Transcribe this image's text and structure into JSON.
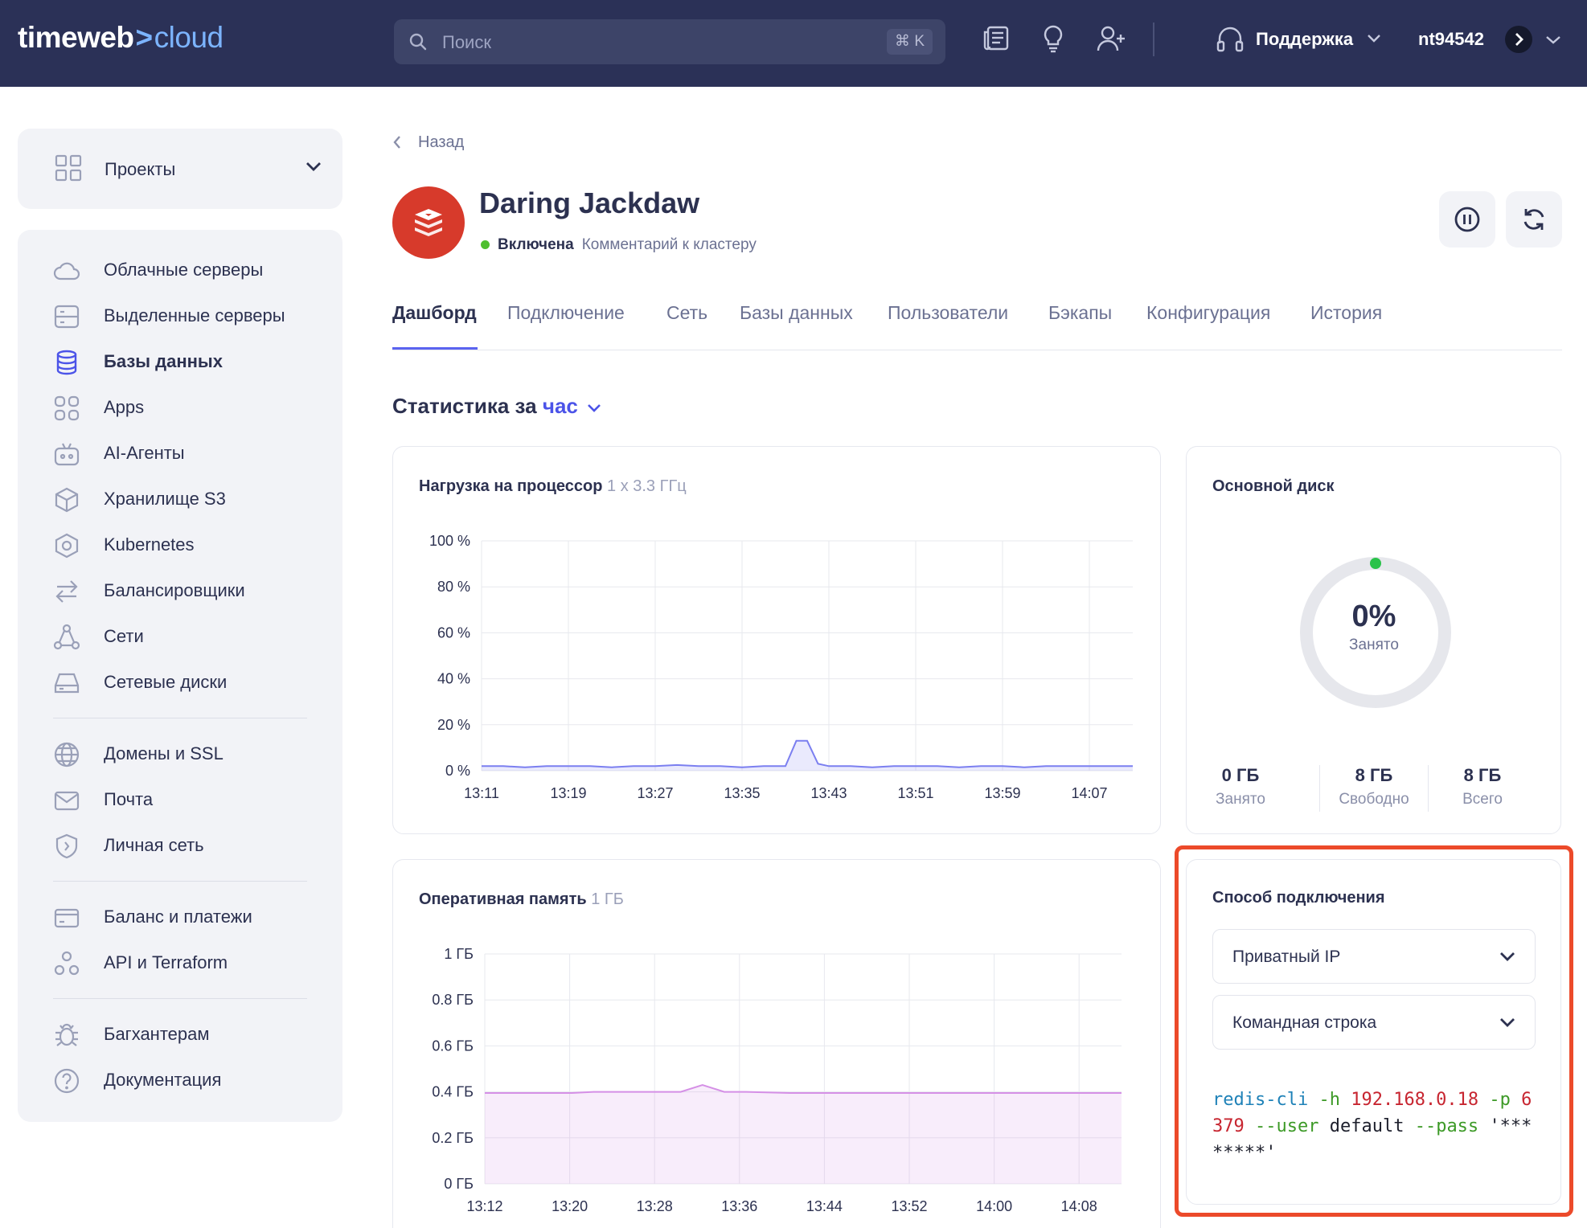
{
  "header": {
    "logo_main": "timeweb",
    "logo_sep": ">",
    "logo_accent": "cloud",
    "search_placeholder": "Поиск",
    "search_shortcut": "⌘ K",
    "support_label": "Поддержка",
    "username": "nt94542",
    "icons": [
      "news-icon",
      "lightbulb-icon",
      "add-user-icon",
      "headset-icon"
    ]
  },
  "sidebar": {
    "projects_label": "Проекты",
    "items": [
      {
        "label": "Облачные серверы",
        "icon": "cloud-icon"
      },
      {
        "label": "Выделенные серверы",
        "icon": "server-icon"
      },
      {
        "label": "Базы данных",
        "icon": "database-icon",
        "active": true
      },
      {
        "label": "Apps",
        "icon": "apps-icon"
      },
      {
        "label": "AI-Агенты",
        "icon": "robot-icon"
      },
      {
        "label": "Хранилище S3",
        "icon": "cube-icon"
      },
      {
        "label": "Kubernetes",
        "icon": "kubernetes-icon"
      },
      {
        "label": "Балансировщики",
        "icon": "arrows-icon"
      },
      {
        "label": "Сети",
        "icon": "network-icon"
      },
      {
        "label": "Сетевые диски",
        "icon": "disk-icon"
      },
      {
        "label": "Домены и SSL",
        "icon": "globe-icon"
      },
      {
        "label": "Почта",
        "icon": "mail-icon"
      },
      {
        "label": "Личная сеть",
        "icon": "shield-icon"
      },
      {
        "label": "Баланс и платежи",
        "icon": "card-icon"
      },
      {
        "label": "API и Terraform",
        "icon": "api-icon"
      },
      {
        "label": "Багхантерам",
        "icon": "bug-icon"
      },
      {
        "label": "Документация",
        "icon": "help-icon"
      }
    ]
  },
  "page": {
    "back_label": "Назад",
    "title": "Daring Jackdaw",
    "status": "Включена",
    "comment": "Комментарий к кластеру",
    "accent_color": "#5b63ef",
    "status_color": "#4fbf2f",
    "tabs": [
      "Дашборд",
      "Подключение",
      "Сеть",
      "Базы данных",
      "Пользователи",
      "Бэкапы",
      "Конфигурация",
      "История"
    ],
    "stats_prefix": "Статистика за",
    "stats_period": "час"
  },
  "cpu_card": {
    "title": "Нагрузка на процессор",
    "subtitle": "1 x 3.3 ГГц"
  },
  "ram_card": {
    "title": "Оперативная память",
    "subtitle": "1 ГБ"
  },
  "chart_data": [
    {
      "type": "area",
      "ylabel": "",
      "xlabel": "",
      "ylim": [
        0,
        100
      ],
      "y_ticks": [
        "100 %",
        "80 %",
        "60 %",
        "40 %",
        "20 %",
        "0 %"
      ],
      "categories": [
        "13:11",
        "13:19",
        "13:27",
        "13:35",
        "13:43",
        "13:51",
        "13:59",
        "14:07"
      ],
      "x": [
        0,
        4,
        8,
        12,
        16,
        20,
        24,
        28,
        32,
        36,
        40,
        44,
        48,
        52,
        56,
        58,
        60,
        62,
        64,
        68,
        72,
        76,
        80,
        84,
        88,
        92,
        96,
        100,
        104,
        108,
        112,
        116,
        120
      ],
      "values": [
        2,
        2,
        1.5,
        2,
        2,
        2,
        1.5,
        2,
        2,
        2.5,
        2,
        2,
        1.5,
        2,
        2,
        13,
        13,
        3,
        2,
        2,
        1.5,
        2,
        2,
        2,
        1.5,
        2,
        2,
        1.5,
        2,
        2,
        2,
        2,
        2
      ],
      "color": "#7b7ff0"
    },
    {
      "type": "area",
      "ylabel": "",
      "xlabel": "",
      "ylim": [
        0,
        1
      ],
      "y_ticks": [
        "1 ГБ",
        "0.8 ГБ",
        "0.6 ГБ",
        "0.4 ГБ",
        "0.2 ГБ",
        "0 ГБ"
      ],
      "categories": [
        "13:12",
        "13:20",
        "13:28",
        "13:36",
        "13:44",
        "13:52",
        "14:00",
        "14:08"
      ],
      "x": [
        0,
        8,
        16,
        20,
        24,
        30,
        36,
        40,
        42,
        44,
        48,
        56,
        64,
        72,
        80,
        88,
        96,
        104,
        112,
        117
      ],
      "values": [
        0.395,
        0.395,
        0.395,
        0.4,
        0.4,
        0.4,
        0.4,
        0.43,
        0.415,
        0.4,
        0.4,
        0.395,
        0.395,
        0.395,
        0.395,
        0.395,
        0.395,
        0.395,
        0.395,
        0.395
      ],
      "color": "#d590e6"
    }
  ],
  "disk_card": {
    "title": "Основной диск",
    "percent": "0%",
    "percent_label": "Занято",
    "used_fraction": 0,
    "stats": [
      {
        "value": "0 ГБ",
        "label": "Занято"
      },
      {
        "value": "8 ГБ",
        "label": "Свободно"
      },
      {
        "value": "8 ГБ",
        "label": "Всего"
      }
    ]
  },
  "connection_card": {
    "title": "Способ подключения",
    "select_network": "Приватный IP",
    "select_method": "Командная строка",
    "code": {
      "cmd": "redis-cli",
      "flag_h": "-h",
      "host": "192.168.0.18",
      "flag_p": "-p",
      "port": "6379",
      "flag_user": "--user",
      "user": "default",
      "flag_pass": "--pass",
      "pass": "'********'"
    }
  }
}
